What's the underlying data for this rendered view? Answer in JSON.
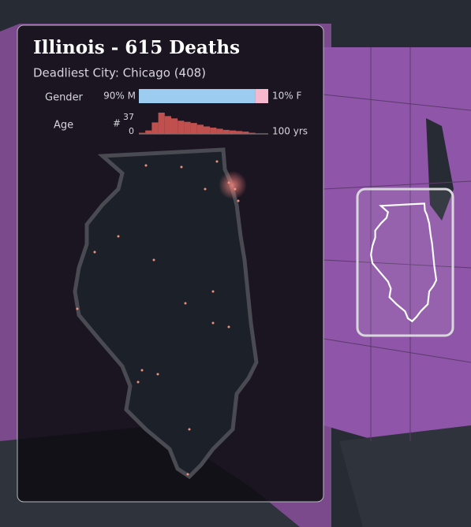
{
  "panel": {
    "title": "Illinois - 615 Deaths",
    "subtitle": "Deadliest City: Chicago (408)"
  },
  "gender": {
    "label": "Gender",
    "male": {
      "value": 90,
      "label": "90% M"
    },
    "female": {
      "value": 10,
      "label": "10% F"
    }
  },
  "age": {
    "label": "Age",
    "count_label": "#",
    "ylim": [
      0,
      37
    ],
    "xlim": [
      0,
      {
        "value": 100,
        "label": "100 yrs"
      }
    ],
    "values": [
      2,
      6,
      20,
      37,
      31,
      27,
      23,
      21,
      19,
      16,
      13,
      11,
      9,
      7,
      6,
      5,
      4,
      2,
      1,
      1
    ]
  }
}
